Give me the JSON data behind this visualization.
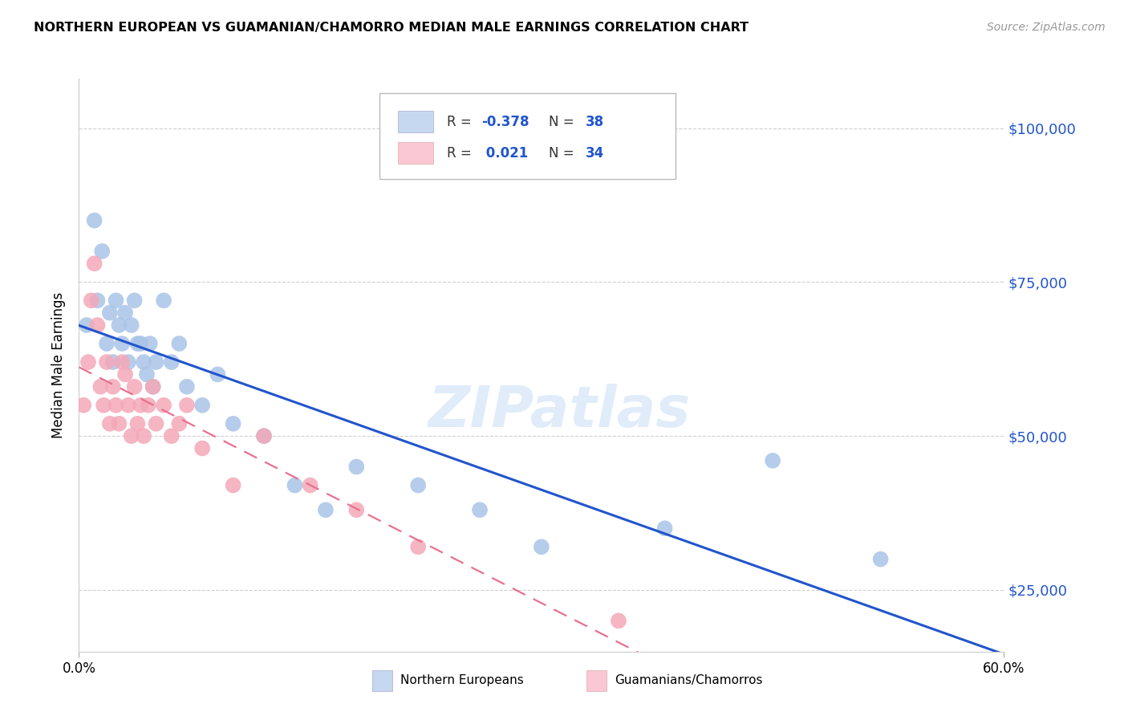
{
  "title": "NORTHERN EUROPEAN VS GUAMANIAN/CHAMORRO MEDIAN MALE EARNINGS CORRELATION CHART",
  "source": "Source: ZipAtlas.com",
  "ylabel": "Median Male Earnings",
  "xlim": [
    0.0,
    0.6
  ],
  "ylim": [
    15000,
    108000
  ],
  "yticks": [
    25000,
    50000,
    75000,
    100000
  ],
  "ytick_labels": [
    "$25,000",
    "$50,000",
    "$75,000",
    "$100,000"
  ],
  "background_color": "#ffffff",
  "grid_color": "#d0d0d0",
  "blue_dot_color": "#aac4e8",
  "pink_dot_color": "#f4a8b8",
  "blue_line_color": "#2255cc",
  "pink_line_color": "#e87090",
  "legend_blue_fill": "#c5d8f0",
  "legend_pink_fill": "#f9c8d4",
  "watermark": "ZIPatlas",
  "northern_europeans_x": [
    0.005,
    0.01,
    0.012,
    0.015,
    0.018,
    0.02,
    0.022,
    0.024,
    0.026,
    0.028,
    0.03,
    0.032,
    0.034,
    0.036,
    0.038,
    0.04,
    0.042,
    0.044,
    0.046,
    0.048,
    0.05,
    0.055,
    0.06,
    0.065,
    0.07,
    0.08,
    0.09,
    0.1,
    0.12,
    0.14,
    0.16,
    0.18,
    0.22,
    0.26,
    0.3,
    0.38,
    0.45,
    0.52
  ],
  "northern_europeans_y": [
    68000,
    85000,
    72000,
    80000,
    65000,
    70000,
    62000,
    72000,
    68000,
    65000,
    70000,
    62000,
    68000,
    72000,
    65000,
    65000,
    62000,
    60000,
    65000,
    58000,
    62000,
    72000,
    62000,
    65000,
    58000,
    55000,
    60000,
    52000,
    50000,
    42000,
    38000,
    45000,
    42000,
    38000,
    32000,
    35000,
    46000,
    30000
  ],
  "guamanians_x": [
    0.003,
    0.006,
    0.008,
    0.01,
    0.012,
    0.014,
    0.016,
    0.018,
    0.02,
    0.022,
    0.024,
    0.026,
    0.028,
    0.03,
    0.032,
    0.034,
    0.036,
    0.038,
    0.04,
    0.042,
    0.045,
    0.048,
    0.05,
    0.055,
    0.06,
    0.065,
    0.07,
    0.08,
    0.1,
    0.12,
    0.15,
    0.18,
    0.22,
    0.35
  ],
  "guamanians_y": [
    55000,
    62000,
    72000,
    78000,
    68000,
    58000,
    55000,
    62000,
    52000,
    58000,
    55000,
    52000,
    62000,
    60000,
    55000,
    50000,
    58000,
    52000,
    55000,
    50000,
    55000,
    58000,
    52000,
    55000,
    50000,
    52000,
    55000,
    48000,
    42000,
    50000,
    42000,
    38000,
    32000,
    20000
  ]
}
